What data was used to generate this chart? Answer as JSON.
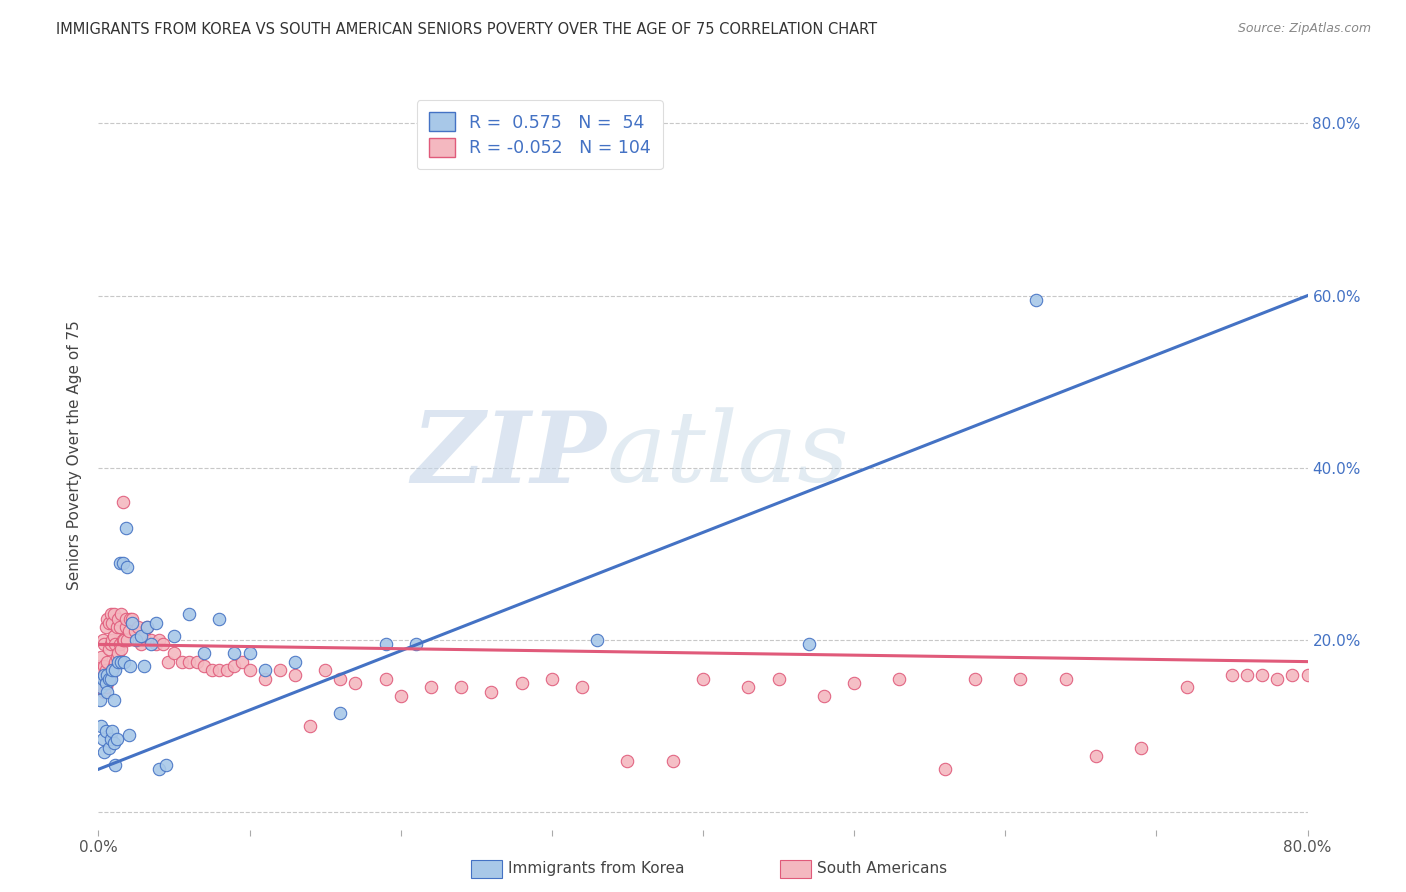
{
  "title": "IMMIGRANTS FROM KOREA VS SOUTH AMERICAN SENIORS POVERTY OVER THE AGE OF 75 CORRELATION CHART",
  "source": "Source: ZipAtlas.com",
  "ylabel": "Seniors Poverty Over the Age of 75",
  "xlim": [
    0.0,
    0.8
  ],
  "ylim": [
    -0.02,
    0.85
  ],
  "yticks": [
    0.0,
    0.2,
    0.4,
    0.6,
    0.8
  ],
  "xticks": [
    0.0,
    0.1,
    0.2,
    0.3,
    0.4,
    0.5,
    0.6,
    0.7,
    0.8
  ],
  "korea_color": "#a8c8e8",
  "south_america_color": "#f4b8c0",
  "korea_line_color": "#4472c4",
  "south_america_line_color": "#e05a7a",
  "legend_korea_label": "Immigrants from Korea",
  "legend_sa_label": "South Americans",
  "korea_R": 0.575,
  "korea_N": 54,
  "sa_R": -0.052,
  "sa_N": 104,
  "watermark_zip": "ZIP",
  "watermark_atlas": "atlas",
  "background_color": "#ffffff",
  "grid_color": "#c8c8c8",
  "korea_line_start_y": 0.05,
  "korea_line_end_y": 0.6,
  "sa_line_start_y": 0.195,
  "sa_line_end_y": 0.175,
  "korea_x": [
    0.001,
    0.002,
    0.002,
    0.003,
    0.003,
    0.004,
    0.004,
    0.005,
    0.005,
    0.006,
    0.006,
    0.007,
    0.007,
    0.008,
    0.008,
    0.009,
    0.009,
    0.01,
    0.01,
    0.011,
    0.011,
    0.012,
    0.013,
    0.014,
    0.015,
    0.016,
    0.017,
    0.018,
    0.019,
    0.02,
    0.021,
    0.022,
    0.025,
    0.028,
    0.03,
    0.032,
    0.035,
    0.038,
    0.04,
    0.045,
    0.05,
    0.06,
    0.07,
    0.08,
    0.09,
    0.1,
    0.11,
    0.13,
    0.16,
    0.19,
    0.21,
    0.33,
    0.47,
    0.62
  ],
  "korea_y": [
    0.13,
    0.145,
    0.1,
    0.155,
    0.085,
    0.16,
    0.07,
    0.15,
    0.095,
    0.16,
    0.14,
    0.075,
    0.155,
    0.085,
    0.155,
    0.095,
    0.165,
    0.08,
    0.13,
    0.055,
    0.165,
    0.085,
    0.175,
    0.29,
    0.175,
    0.29,
    0.175,
    0.33,
    0.285,
    0.09,
    0.17,
    0.22,
    0.2,
    0.205,
    0.17,
    0.215,
    0.195,
    0.22,
    0.05,
    0.055,
    0.205,
    0.23,
    0.185,
    0.225,
    0.185,
    0.185,
    0.165,
    0.175,
    0.115,
    0.195,
    0.195,
    0.2,
    0.195,
    0.595
  ],
  "sa_x": [
    0.001,
    0.001,
    0.002,
    0.002,
    0.003,
    0.003,
    0.003,
    0.004,
    0.004,
    0.004,
    0.005,
    0.005,
    0.005,
    0.006,
    0.006,
    0.006,
    0.007,
    0.007,
    0.007,
    0.008,
    0.008,
    0.008,
    0.009,
    0.009,
    0.009,
    0.01,
    0.01,
    0.01,
    0.011,
    0.011,
    0.012,
    0.012,
    0.013,
    0.013,
    0.014,
    0.014,
    0.015,
    0.015,
    0.016,
    0.016,
    0.017,
    0.018,
    0.018,
    0.019,
    0.02,
    0.021,
    0.022,
    0.024,
    0.026,
    0.028,
    0.03,
    0.032,
    0.035,
    0.038,
    0.04,
    0.043,
    0.046,
    0.05,
    0.055,
    0.06,
    0.065,
    0.07,
    0.075,
    0.08,
    0.085,
    0.09,
    0.095,
    0.1,
    0.11,
    0.12,
    0.13,
    0.14,
    0.15,
    0.16,
    0.17,
    0.19,
    0.2,
    0.22,
    0.24,
    0.26,
    0.28,
    0.3,
    0.32,
    0.35,
    0.38,
    0.4,
    0.43,
    0.45,
    0.48,
    0.5,
    0.53,
    0.56,
    0.58,
    0.61,
    0.64,
    0.66,
    0.69,
    0.72,
    0.75,
    0.76,
    0.77,
    0.78,
    0.79,
    0.8
  ],
  "sa_y": [
    0.145,
    0.17,
    0.155,
    0.18,
    0.145,
    0.165,
    0.2,
    0.14,
    0.17,
    0.195,
    0.145,
    0.165,
    0.215,
    0.15,
    0.175,
    0.225,
    0.155,
    0.19,
    0.22,
    0.16,
    0.195,
    0.23,
    0.165,
    0.2,
    0.22,
    0.17,
    0.205,
    0.23,
    0.175,
    0.195,
    0.18,
    0.215,
    0.185,
    0.225,
    0.195,
    0.215,
    0.19,
    0.23,
    0.2,
    0.36,
    0.2,
    0.215,
    0.225,
    0.2,
    0.21,
    0.225,
    0.225,
    0.21,
    0.215,
    0.195,
    0.205,
    0.215,
    0.2,
    0.195,
    0.2,
    0.195,
    0.175,
    0.185,
    0.175,
    0.175,
    0.175,
    0.17,
    0.165,
    0.165,
    0.165,
    0.17,
    0.175,
    0.165,
    0.155,
    0.165,
    0.16,
    0.1,
    0.165,
    0.155,
    0.15,
    0.155,
    0.135,
    0.145,
    0.145,
    0.14,
    0.15,
    0.155,
    0.145,
    0.06,
    0.06,
    0.155,
    0.145,
    0.155,
    0.135,
    0.15,
    0.155,
    0.05,
    0.155,
    0.155,
    0.155,
    0.065,
    0.075,
    0.145,
    0.16,
    0.16,
    0.16,
    0.155,
    0.16,
    0.16
  ]
}
